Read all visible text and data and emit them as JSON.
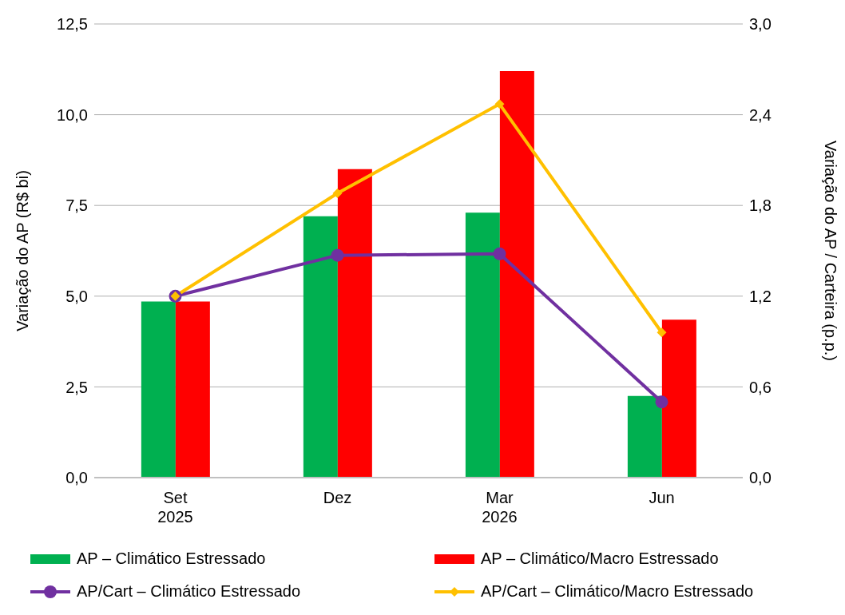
{
  "chart_data": {
    "type": "bar",
    "categories": [
      "Set\n2025",
      "Dez",
      "Mar\n2026",
      "Jun"
    ],
    "ylabel": "Variação do AP (R$ bi)",
    "y2label": "Variação do AP / Carteira (p.p.)",
    "ylim": [
      0,
      12.5
    ],
    "yticks": [
      {
        "value": 0,
        "label": "0,0"
      },
      {
        "value": 2.5,
        "label": "2,5"
      },
      {
        "value": 5,
        "label": "5,0"
      },
      {
        "value": 7.5,
        "label": "7,5"
      },
      {
        "value": 10,
        "label": "10,0"
      },
      {
        "value": 12.5,
        "label": "12,5"
      }
    ],
    "y2lim": [
      0,
      3
    ],
    "y2ticks": [
      {
        "value": 0,
        "label": "0,0"
      },
      {
        "value": 0.6,
        "label": "0,6"
      },
      {
        "value": 1.2,
        "label": "1,2"
      },
      {
        "value": 1.8,
        "label": "1,8"
      },
      {
        "value": 2.4,
        "label": "2,4"
      },
      {
        "value": 3,
        "label": "3,0"
      }
    ],
    "grid": "y",
    "legend": "bottom",
    "series": [
      {
        "name": "AP – Climático Estressado",
        "color": "#00b050",
        "values": [
          4.85,
          7.2,
          7.3,
          2.25
        ]
      },
      {
        "name": "AP – Climático/Macro Estressado",
        "color": "#ff0000",
        "values": [
          4.85,
          8.5,
          11.2,
          4.35
        ]
      },
      {
        "name": "AP/Cart – Climático Estressado",
        "type": "line",
        "axis": "y2",
        "color": "#7030a0",
        "marker": "circle",
        "values": [
          1.2,
          1.47,
          1.48,
          0.5
        ]
      },
      {
        "name": "AP/Cart – Climático/Macro Estressado",
        "type": "line",
        "axis": "y2",
        "color": "#ffc000",
        "marker": "diamond",
        "values": [
          1.2,
          1.88,
          2.47,
          0.96
        ]
      }
    ]
  }
}
